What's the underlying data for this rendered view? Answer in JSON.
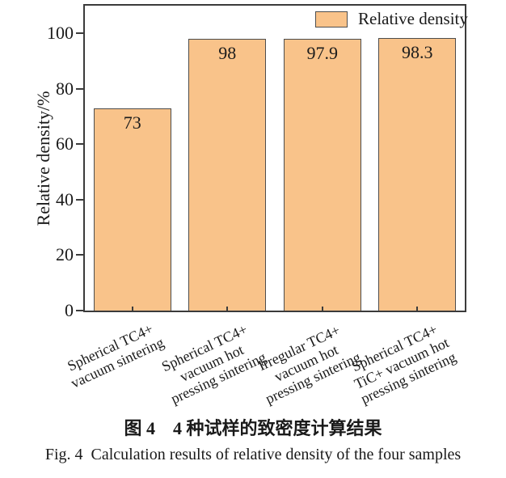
{
  "figure": {
    "captions": {
      "zh": "图 4　4 种试样的致密度计算结果",
      "en": "Fig. 4  Calculation results of relative density of the four samples"
    }
  },
  "chart_data": {
    "type": "bar",
    "title": "图 4  4 种试样的致密度计算结果",
    "subtitle": "Fig. 4  Calculation results of relative density of the four samples",
    "ylabel": "Relative density/%",
    "xlabel": "",
    "legend": "Relative density",
    "legend_position": "upper right inside",
    "grid": false,
    "categories": [
      "Spherical TC4+\nvacuum sintering",
      "Spherical TC4+\nvacuum hot\npressing sintering",
      "Irregular TC4+\nvacuum hot\npressing sintering",
      "Spherical TC4+\nTiC+ vacuum hot\npressing sintering"
    ],
    "values": [
      73,
      98,
      97.9,
      98.3
    ],
    "value_labels": [
      "73",
      "98",
      "97.9",
      "98.3"
    ],
    "yticks": [
      0,
      20,
      40,
      60,
      80,
      100
    ],
    "ylim": [
      0,
      110
    ],
    "bar_color": "#F9C38A",
    "bar_border_color": "#4D4D4D",
    "axis_color": "#3B3B3B"
  }
}
